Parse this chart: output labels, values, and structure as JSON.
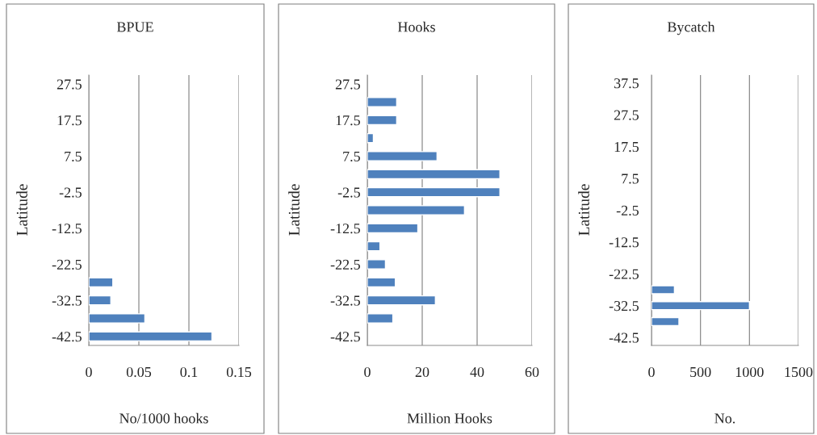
{
  "chart_data": [
    {
      "type": "bar",
      "orientation": "horizontal",
      "title": "BPUE",
      "xlabel": "No/1000 hooks",
      "ylabel": "Latitude",
      "categories": [
        "27.5",
        null,
        "17.5",
        null,
        "7.5",
        null,
        "-2.5",
        null,
        "-12.5",
        null,
        "-22.5",
        null,
        "-32.5",
        null,
        "-42.5"
      ],
      "series": [
        {
          "color": "#4f81bd",
          "values": [
            null,
            null,
            null,
            null,
            null,
            null,
            null,
            null,
            null,
            null,
            null,
            0.024,
            0.022,
            0.056,
            0.123
          ]
        }
      ],
      "xlim": [
        0,
        0.15
      ],
      "xticks": [
        0,
        0.05,
        0.1,
        0.15
      ],
      "grid": "x"
    },
    {
      "type": "bar",
      "orientation": "horizontal",
      "title": "Hooks",
      "xlabel": "Million Hooks",
      "ylabel": "Latitude",
      "categories": [
        "27.5",
        null,
        "17.5",
        null,
        "7.5",
        null,
        "-2.5",
        null,
        "-12.5",
        null,
        "-22.5",
        null,
        "-32.5",
        null,
        "-42.5"
      ],
      "series": [
        {
          "color": "#4f81bd",
          "values": [
            null,
            10.7,
            10.7,
            2.2,
            25.4,
            48.3,
            48.3,
            35.4,
            18.4,
            4.6,
            6.6,
            10.2,
            24.8,
            9.3,
            null
          ]
        }
      ],
      "xlim": [
        0,
        60
      ],
      "xticks": [
        0,
        20,
        40,
        60
      ],
      "grid": "x"
    },
    {
      "type": "bar",
      "orientation": "horizontal",
      "title": "Bycatch",
      "xlabel": "No.",
      "ylabel": "Latitude",
      "categories": [
        "37.5",
        null,
        "27.5",
        null,
        "17.5",
        null,
        "7.5",
        null,
        "-2.5",
        null,
        "-12.5",
        null,
        "-22.5",
        null,
        "-32.5",
        null,
        "-42.5"
      ],
      "series": [
        {
          "color": "#4f81bd",
          "values": [
            null,
            null,
            null,
            null,
            null,
            null,
            null,
            null,
            null,
            null,
            null,
            null,
            null,
            234,
            1000,
            280,
            null
          ]
        }
      ],
      "xlim": [
        0,
        1500
      ],
      "xticks": [
        0,
        500,
        1000,
        1500
      ],
      "grid": "x"
    }
  ]
}
